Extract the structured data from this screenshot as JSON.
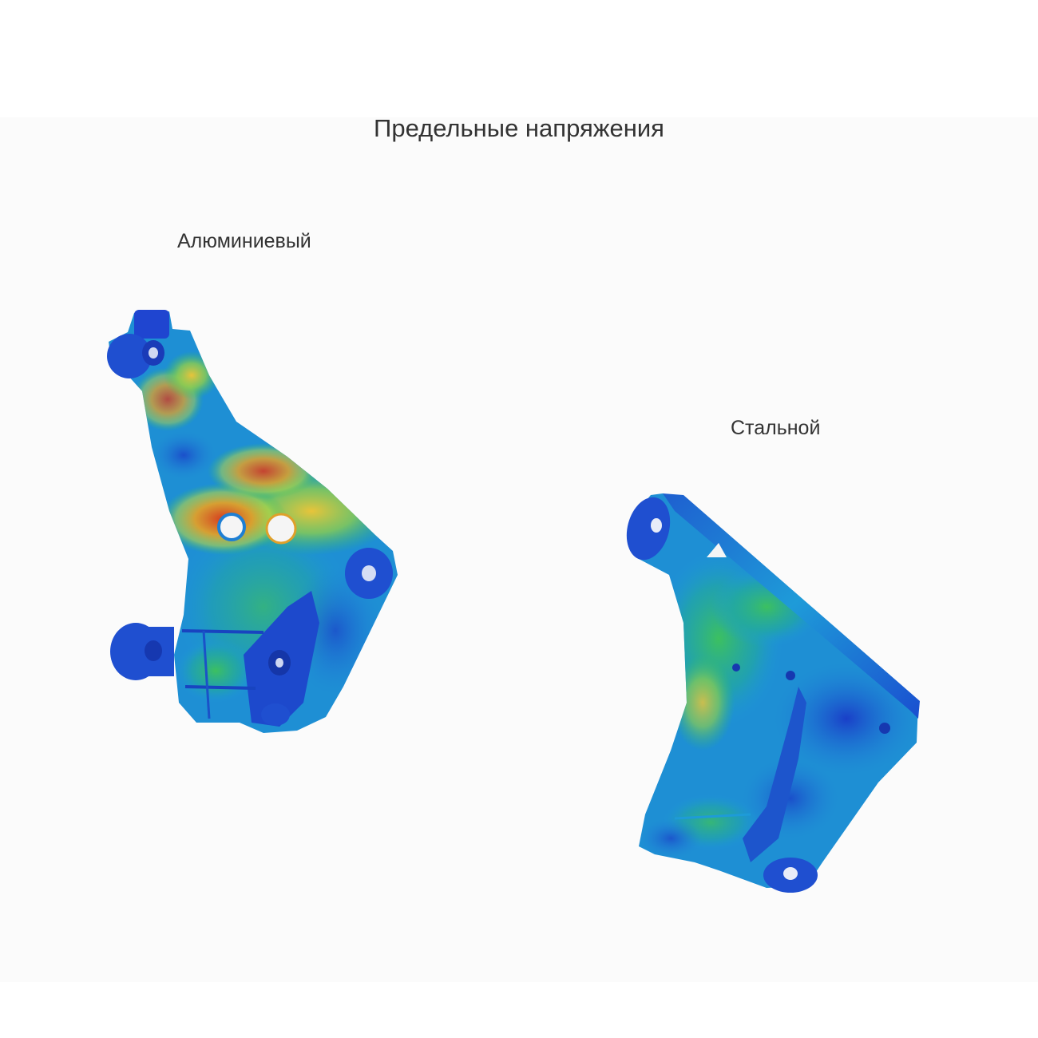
{
  "title": "Предельные напряжения",
  "parts": {
    "aluminum": {
      "label": "Алюминиевый"
    },
    "steel": {
      "label": "Стальной"
    }
  },
  "colors": {
    "low": "#1f4fd0",
    "mid_low": "#1e9bd8",
    "mid": "#2fbf60",
    "mid_high": "#d9d93a",
    "high": "#d63b1f"
  }
}
